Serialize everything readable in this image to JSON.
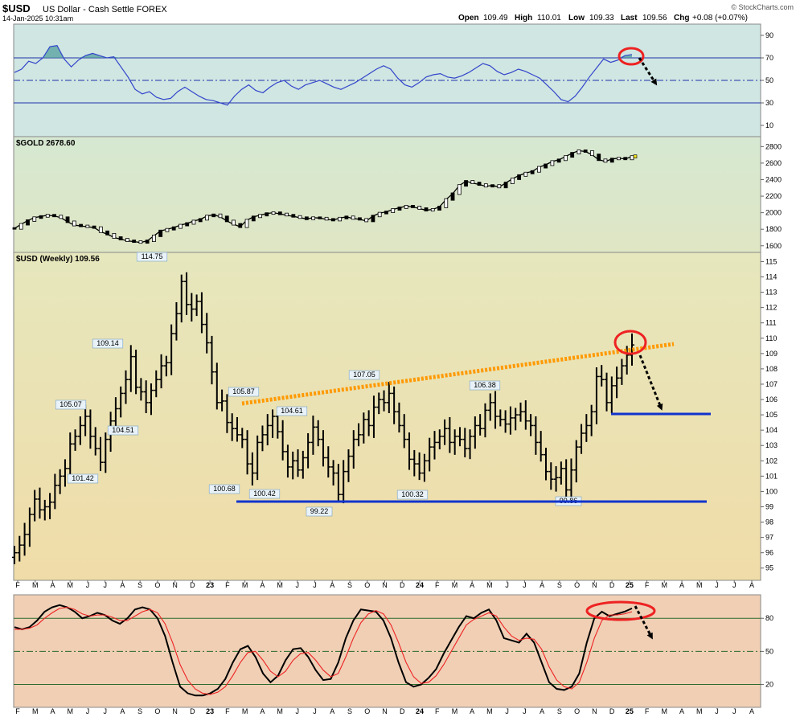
{
  "header": {
    "symbol": "$USD",
    "name": "US Dollar - Cash Settle FOREX",
    "date": "14-Jan-2025 10:31am",
    "copyright": "© StockCharts.com",
    "quote": {
      "open_label": "Open",
      "open": "109.49",
      "high_label": "High",
      "high": "110.01",
      "low_label": "Low",
      "low": "109.33",
      "last_label": "Last",
      "last": "109.56",
      "chg_label": "Chg",
      "chg": "+0.08 (+0.07%)"
    }
  },
  "x_axis": {
    "labels": [
      "F",
      "M",
      "A",
      "M",
      "J",
      "J",
      "A",
      "S",
      "O",
      "N",
      "D",
      "23",
      "F",
      "M",
      "A",
      "M",
      "J",
      "J",
      "A",
      "S",
      "O",
      "N",
      "D",
      "24",
      "F",
      "M",
      "A",
      "M",
      "J",
      "J",
      "A",
      "S",
      "O",
      "N",
      "D",
      "25",
      "F",
      "M",
      "A",
      "M",
      "J",
      "J",
      "A"
    ],
    "bold": [
      "23",
      "24",
      "25"
    ]
  },
  "colors": {
    "rsi_bg": "#cfe6e2",
    "price_bg_top": "#e4e4b8",
    "price_bg_bottom": "#efdca8",
    "stoch_bg": "#f0cfb5",
    "rsi_line": "#3344cc",
    "level_line": "#2233aa",
    "trend_dotted": "#ff9900",
    "support_line": "#1133cc",
    "alert_circle": "#ee2222",
    "stoch_signal": "#ee2222"
  },
  "chart_data": [
    {
      "type": "line",
      "panel": "RSI",
      "yticks": [
        90,
        70,
        50,
        30,
        10
      ],
      "levels": [
        70,
        50,
        30
      ],
      "ylim": [
        0,
        100
      ],
      "values": [
        57,
        60,
        67,
        65,
        70,
        80,
        81,
        69,
        62,
        68,
        72,
        74,
        72,
        70,
        71,
        62,
        53,
        42,
        38,
        40,
        35,
        33,
        34,
        40,
        44,
        40,
        36,
        33,
        32,
        30,
        28,
        36,
        42,
        46,
        41,
        39,
        44,
        48,
        50,
        45,
        42,
        46,
        48,
        50,
        47,
        44,
        42,
        45,
        48,
        52,
        56,
        60,
        63,
        60,
        52,
        46,
        44,
        48,
        53,
        55,
        56,
        53,
        52,
        54,
        57,
        61,
        65,
        63,
        58,
        55,
        57,
        60,
        58,
        55,
        52,
        46,
        40,
        33,
        31,
        36,
        44,
        53,
        61,
        69,
        66,
        68,
        72,
        73
      ]
    },
    {
      "type": "line",
      "panel": "GOLD",
      "legend": "$GOLD 2678.60",
      "yticks": [
        2800,
        2600,
        2400,
        2200,
        2000,
        1800,
        1600
      ],
      "ylim": [
        1520,
        2920
      ],
      "values": [
        1810,
        1860,
        1905,
        1940,
        1955,
        1970,
        1960,
        1940,
        1890,
        1850,
        1840,
        1830,
        1820,
        1770,
        1740,
        1700,
        1680,
        1660,
        1650,
        1640,
        1660,
        1720,
        1780,
        1800,
        1820,
        1850,
        1870,
        1900,
        1920,
        1960,
        1975,
        1950,
        1900,
        1860,
        1830,
        1910,
        1950,
        1970,
        1990,
        2000,
        1985,
        1970,
        1955,
        1940,
        1925,
        1940,
        1935,
        1920,
        1910,
        1935,
        1950,
        1930,
        1920,
        1900,
        1960,
        1995,
        2010,
        2040,
        2060,
        2080,
        2070,
        2050,
        2030,
        2040,
        2070,
        2160,
        2230,
        2330,
        2380,
        2360,
        2340,
        2320,
        2330,
        2310,
        2360,
        2410,
        2450,
        2480,
        2500,
        2550,
        2580,
        2620,
        2640,
        2680,
        2720,
        2750,
        2740,
        2700,
        2640,
        2620,
        2650,
        2660,
        2650,
        2680
      ]
    },
    {
      "type": "candlestick",
      "panel": "USD",
      "legend": "$USD (Weekly) 109.56",
      "yticks": [
        115,
        114,
        113,
        112,
        111,
        110,
        109,
        108,
        107,
        106,
        105,
        104,
        103,
        102,
        101,
        100,
        99,
        98,
        97,
        96,
        95
      ],
      "ylim": [
        94.2,
        115.6
      ],
      "closes": [
        96.0,
        96.5,
        97.2,
        98.5,
        99.5,
        98.8,
        99.0,
        99.3,
        100.4,
        101.0,
        101.5,
        103.1,
        103.6,
        104.3,
        104.9,
        103.6,
        102.8,
        101.9,
        103.4,
        104.6,
        105.4,
        106.4,
        107.3,
        108.8,
        106.8,
        106.5,
        105.8,
        106.6,
        107.3,
        108.2,
        108.4,
        110.3,
        111.6,
        113.7,
        112.2,
        111.9,
        112.4,
        110.9,
        109.7,
        107.8,
        105.8,
        105.9,
        104.5,
        104.1,
        103.7,
        103.4,
        101.8,
        101.2,
        103.2,
        103.7,
        104.3,
        104.9,
        103.9,
        102.6,
        101.6,
        102.0,
        101.4,
        102.2,
        103.2,
        104.2,
        103.4,
        102.2,
        101.6,
        101.2,
        99.8,
        101.3,
        102.3,
        103.4,
        103.7,
        104.7,
        104.3,
        105.5,
        106.0,
        105.8,
        106.4,
        105.2,
        104.3,
        103.4,
        102.1,
        101.8,
        101.2,
        102.0,
        102.9,
        103.2,
        103.6,
        104.1,
        103.2,
        103.6,
        103.4,
        102.8,
        103.6,
        104.3,
        104.1,
        105.3,
        105.8,
        104.9,
        104.7,
        104.4,
        104.8,
        105.0,
        105.2,
        104.6,
        104.3,
        103.2,
        102.4,
        101.3,
        100.8,
        100.9,
        101.5,
        100.1,
        101.4,
        102.9,
        103.8,
        104.3,
        105.2,
        107.5,
        107.3,
        105.8,
        106.9,
        107.4,
        108.2,
        108.9,
        109.56
      ],
      "price_labels": [
        "114.75",
        "109.14",
        "105.07",
        "104.51",
        "101.42",
        "105.87",
        "104.61",
        "107.05",
        "106.38",
        "100.68",
        "100.42",
        "99.22",
        "100.32",
        "99.86"
      ],
      "annotations": [
        "rising dotted trendline from 105.87",
        "support line near 99.4",
        "target line near 105.1",
        "downward arrow from 110 toward 105"
      ]
    },
    {
      "type": "line",
      "panel": "Stochastic",
      "yticks": [
        80,
        50,
        20
      ],
      "levels": [
        80,
        50,
        20
      ],
      "ylim": [
        0,
        100
      ],
      "series": [
        {
          "values": [
            72,
            70,
            72,
            78,
            86,
            90,
            92,
            90,
            86,
            80,
            82,
            85,
            83,
            78,
            75,
            80,
            88,
            90,
            88,
            80,
            64,
            40,
            18,
            12,
            10,
            10,
            12,
            16,
            25,
            40,
            52,
            55,
            45,
            30,
            22,
            28,
            42,
            52,
            53,
            45,
            33,
            24,
            25,
            40,
            62,
            78,
            88,
            87,
            86,
            78,
            62,
            40,
            22,
            18,
            20,
            26,
            34,
            48,
            60,
            72,
            82,
            80,
            85,
            88,
            78,
            62,
            60,
            58,
            66,
            58,
            40,
            22,
            16,
            15,
            18,
            30,
            58,
            80,
            86,
            82,
            84,
            86,
            89
          ]
        },
        {
          "values": [
            70,
            70,
            71,
            74,
            80,
            85,
            89,
            90,
            88,
            84,
            82,
            83,
            83,
            81,
            78,
            78,
            82,
            86,
            88,
            85,
            75,
            58,
            38,
            24,
            16,
            12,
            11,
            13,
            18,
            28,
            40,
            49,
            50,
            42,
            32,
            27,
            32,
            42,
            48,
            49,
            42,
            33,
            27,
            30,
            45,
            62,
            76,
            84,
            87,
            84,
            74,
            58,
            40,
            27,
            21,
            22,
            28,
            38,
            50,
            62,
            74,
            79,
            82,
            85,
            82,
            72,
            64,
            60,
            62,
            61,
            52,
            36,
            24,
            18,
            16,
            22,
            40,
            62,
            78,
            83,
            83,
            84,
            86
          ]
        }
      ]
    }
  ]
}
